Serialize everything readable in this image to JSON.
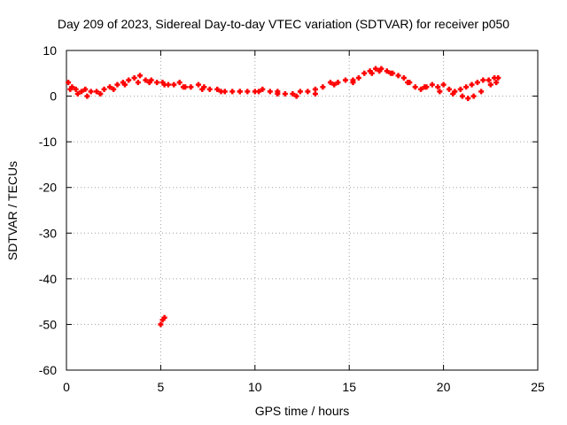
{
  "chart_data": {
    "type": "scatter",
    "title": "Day 209 of 2023, Sidereal Day-to-day VTEC variation (SDTVAR) for receiver p050",
    "xlabel": "GPS time / hours",
    "ylabel": "SDTVAR / TECUs",
    "xlim": [
      0,
      25
    ],
    "ylim": [
      -60,
      10
    ],
    "xticks": [
      0,
      5,
      10,
      15,
      20,
      25
    ],
    "yticks": [
      10,
      0,
      -10,
      -20,
      -30,
      -40,
      -50,
      -60
    ],
    "grid": true,
    "marker": "plus",
    "color": "#ff0000",
    "series": [
      {
        "name": "SDTVAR",
        "x": [
          0.1,
          0.3,
          0.5,
          0.8,
          1.0,
          1.3,
          1.6,
          2.0,
          2.3,
          2.7,
          3.0,
          3.3,
          3.6,
          3.9,
          4.2,
          4.5,
          4.8,
          5.1,
          5.4,
          5.7,
          6.0,
          6.3,
          6.6,
          7.0,
          7.3,
          7.6,
          8.0,
          8.4,
          8.8,
          9.2,
          9.6,
          10.0,
          10.4,
          10.8,
          11.2,
          11.6,
          12.0,
          12.4,
          12.8,
          13.2,
          13.6,
          14.0,
          14.4,
          14.8,
          15.2,
          15.5,
          15.8,
          16.1,
          16.4,
          16.7,
          17.0,
          17.3,
          17.6,
          17.9,
          18.2,
          18.5,
          18.8,
          19.1,
          19.4,
          19.7,
          20.0,
          20.3,
          20.6,
          20.9,
          21.2,
          21.5,
          21.8,
          22.1,
          22.4,
          22.7,
          22.9,
          0.2,
          0.6,
          1.1,
          1.8,
          2.5,
          3.1,
          3.8,
          4.4,
          5.2,
          6.2,
          7.2,
          8.2,
          9.2,
          10.2,
          11.2,
          12.2,
          13.2,
          14.2,
          15.2,
          16.2,
          16.6,
          17.2,
          18.1,
          19.0,
          19.8,
          20.5,
          21.0,
          21.3,
          21.6,
          22.0,
          22.5,
          22.8,
          5.0,
          5.1,
          5.2
        ],
        "y": [
          3,
          2,
          1.5,
          1,
          1.5,
          1,
          1,
          1.5,
          2,
          2.5,
          3,
          3.5,
          4,
          4.5,
          3.5,
          3.5,
          3,
          3,
          2.5,
          2.5,
          3,
          2,
          2,
          2.5,
          2,
          1.5,
          1.5,
          1,
          1,
          1,
          1,
          1,
          1.5,
          1,
          1,
          0.5,
          0.5,
          1,
          1,
          1.5,
          2,
          3,
          3,
          3.5,
          3.5,
          4,
          5,
          5.5,
          6,
          6,
          5.5,
          5,
          4.5,
          4,
          3,
          2,
          1.5,
          2,
          2.5,
          2,
          2.5,
          1.5,
          1,
          1.5,
          2,
          2.5,
          3,
          3.5,
          3.5,
          4,
          4,
          1.5,
          0.5,
          0,
          0.5,
          1.5,
          2.5,
          3,
          3,
          2.5,
          2,
          1.5,
          1,
          1,
          1,
          0.5,
          0,
          0.5,
          2.5,
          3,
          5,
          5.5,
          5,
          3,
          2,
          1,
          0.5,
          0,
          -0.5,
          0,
          1,
          2.5,
          3,
          -50,
          -49,
          -48.5
        ]
      }
    ]
  }
}
